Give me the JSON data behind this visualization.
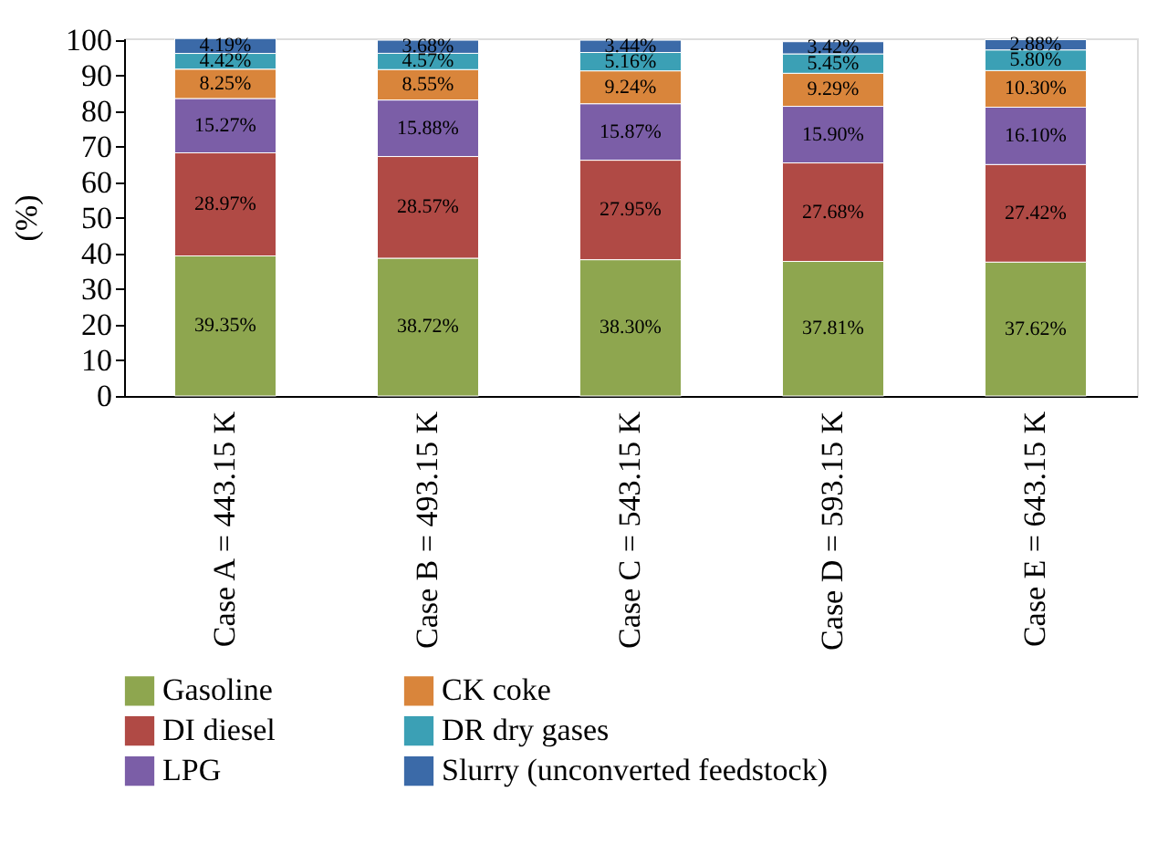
{
  "chart_data": {
    "type": "bar",
    "stacked": true,
    "ylabel": "(%)",
    "ylim": [
      0,
      100.5
    ],
    "yticks": [
      0,
      10,
      20,
      30,
      40,
      50,
      60,
      70,
      80,
      90,
      100
    ],
    "grid": false,
    "legend": "bottom",
    "categories": [
      "Case A = 443.15 K",
      "Case B = 493.15 K",
      "Case C = 543.15 K",
      "Case D = 593.15 K",
      "Case E = 643.15 K"
    ],
    "series": [
      {
        "name": "Gasoline",
        "color": "#8ea64f",
        "values": [
          39.35,
          38.72,
          38.3,
          37.81,
          37.62
        ],
        "value_labels": [
          "39.35%",
          "38.72%",
          "38.30%",
          "37.81%",
          "37.62%"
        ]
      },
      {
        "name": "DI diesel",
        "color": "#b04a45",
        "values": [
          28.97,
          28.57,
          27.95,
          27.68,
          27.42
        ],
        "value_labels": [
          "28.97%",
          "28.57%",
          "27.95%",
          "27.68%",
          "27.42%"
        ]
      },
      {
        "name": "LPG",
        "color": "#7b5ea7",
        "values": [
          15.27,
          15.88,
          15.87,
          15.9,
          16.1
        ],
        "value_labels": [
          "15.27%",
          "15.88%",
          "15.87%",
          "15.90%",
          "16.10%"
        ]
      },
      {
        "name": "CK coke",
        "color": "#d9853b",
        "values": [
          8.25,
          8.55,
          9.24,
          9.29,
          10.3
        ],
        "value_labels": [
          "8.25%",
          "8.55%",
          "9.24%",
          "9.29%",
          "10.30%"
        ]
      },
      {
        "name": "DR dry gases",
        "color": "#3ba0b5",
        "values": [
          4.42,
          4.57,
          5.16,
          5.45,
          5.8
        ],
        "value_labels": [
          "4.42%",
          "4.57%",
          "5.16%",
          "5.45%",
          "5.80%"
        ]
      },
      {
        "name": "Slurry (unconverted feedstock)",
        "color": "#3b6aa8",
        "values": [
          4.19,
          3.68,
          3.44,
          3.42,
          2.88
        ],
        "value_labels": [
          "4.19%",
          "3.68%",
          "3.44%",
          "3.42%",
          "2.88%"
        ]
      }
    ]
  }
}
